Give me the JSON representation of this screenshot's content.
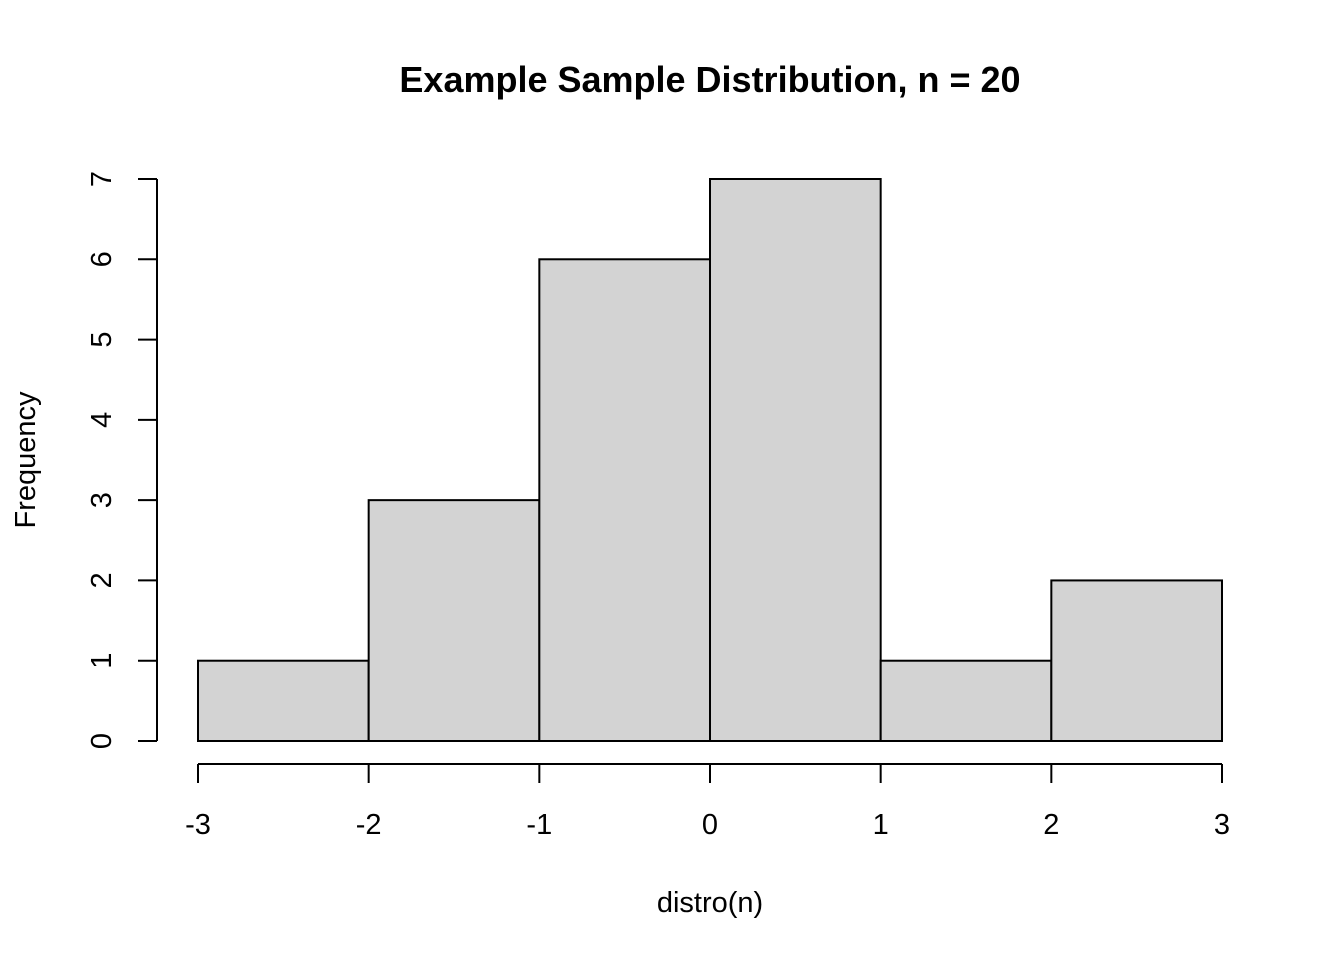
{
  "chart_data": {
    "type": "bar",
    "title": "Example Sample Distribution, n =  20",
    "xlabel": "distro(n)",
    "ylabel": "Frequency",
    "bins": [
      {
        "from": -3,
        "to": -2,
        "count": 1
      },
      {
        "from": -2,
        "to": -1,
        "count": 3
      },
      {
        "from": -1,
        "to": 0,
        "count": 6
      },
      {
        "from": 0,
        "to": 1,
        "count": 7
      },
      {
        "from": 1,
        "to": 2,
        "count": 1
      },
      {
        "from": 2,
        "to": 3,
        "count": 2
      }
    ],
    "x_ticks": [
      -3,
      -2,
      -1,
      0,
      1,
      2,
      3
    ],
    "y_ticks": [
      0,
      1,
      2,
      3,
      4,
      5,
      6,
      7
    ],
    "xlim": [
      -3,
      3
    ],
    "ylim": [
      0,
      7
    ],
    "grid": false,
    "colors": {
      "bar_fill": "#d3d3d3",
      "bar_stroke": "#000000"
    }
  }
}
